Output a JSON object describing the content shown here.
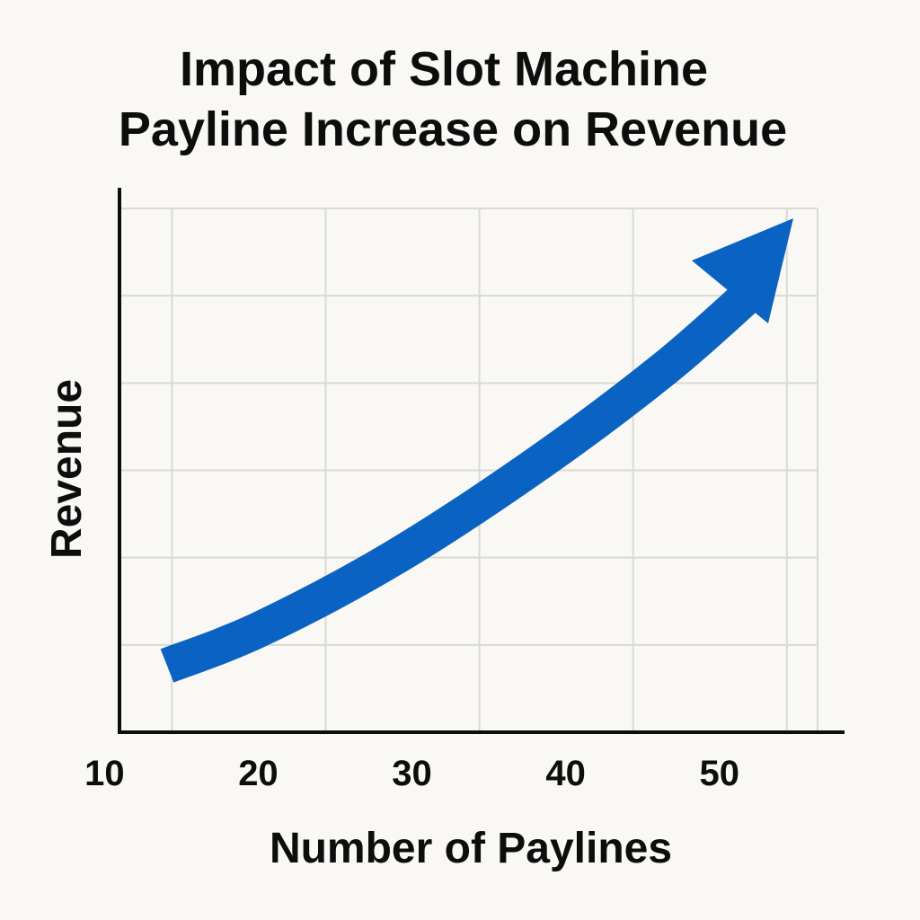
{
  "chart_data": {
    "type": "line",
    "title": "Impact of Slot Machine Payline Increase on Revenue",
    "title_lines": [
      "Impact of Slot Machine",
      "Payline Increase on Revenue"
    ],
    "xlabel": "Number of Paylines",
    "ylabel": "Revenue",
    "x_ticks": [
      "10",
      "20",
      "30",
      "40",
      "50"
    ],
    "x": [
      10,
      20,
      30,
      40,
      50,
      54
    ],
    "values": [
      0.45,
      1.25,
      2.3,
      3.6,
      5.2,
      5.75
    ],
    "xlim": [
      7,
      52
    ],
    "ylim": [
      0,
      6
    ],
    "y_gridlines": 6,
    "grid": true,
    "series_style": "arrow",
    "colors": {
      "series": "#0a62c2",
      "grid": "#d9d9d6",
      "axis": "#0d0d0d",
      "background": "#f9f8f4"
    }
  }
}
